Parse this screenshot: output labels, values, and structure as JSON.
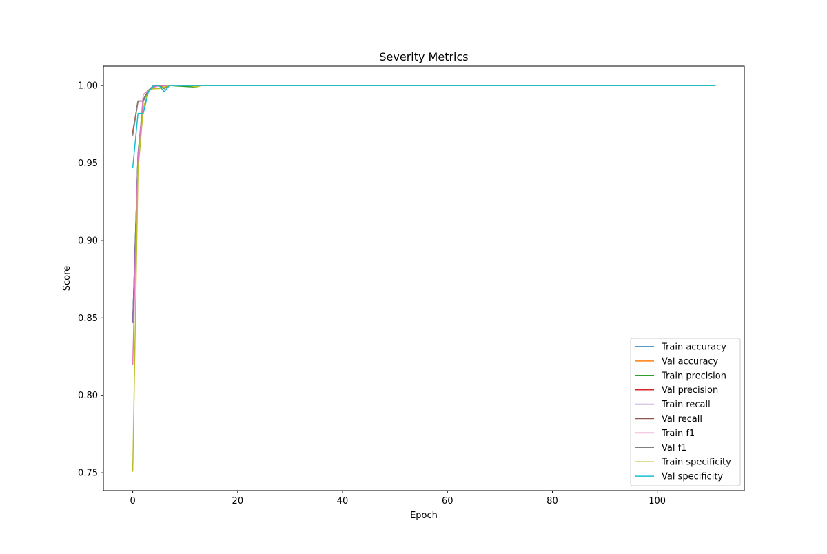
{
  "chart_data": {
    "type": "line",
    "title": "Severity Metrics",
    "xlabel": "Epoch",
    "ylabel": "Score",
    "xlim": [
      -5.6,
      116.6
    ],
    "ylim": [
      0.7385,
      1.0125
    ],
    "xticks": [
      0,
      20,
      40,
      60,
      80,
      100
    ],
    "xtick_labels": [
      "0",
      "20",
      "40",
      "60",
      "80",
      "100"
    ],
    "yticks": [
      0.75,
      0.8,
      0.85,
      0.9,
      0.95,
      1.0
    ],
    "ytick_labels": [
      "0.75",
      "0.80",
      "0.85",
      "0.90",
      "0.95",
      "1.00"
    ],
    "legend_position": "lower-right",
    "grid": false,
    "last_epoch": 111,
    "series": [
      {
        "name": "Train accuracy",
        "color": "#1f77b4",
        "points": [
          [
            0,
            0.847
          ],
          [
            1,
            0.955
          ],
          [
            2,
            0.99
          ],
          [
            3,
            0.997
          ],
          [
            4,
            0.999
          ],
          [
            5,
            1.0
          ],
          [
            6,
            1.0
          ],
          [
            7,
            1.0
          ],
          [
            111,
            1.0
          ]
        ]
      },
      {
        "name": "Val accuracy",
        "color": "#ff7f0e",
        "points": [
          [
            0,
            0.97
          ],
          [
            1,
            0.99
          ],
          [
            2,
            0.99
          ],
          [
            3,
            0.997
          ],
          [
            4,
            1.0
          ],
          [
            5,
            1.0
          ],
          [
            6,
            0.999
          ],
          [
            7,
            1.0
          ],
          [
            111,
            1.0
          ]
        ]
      },
      {
        "name": "Train precision",
        "color": "#2ca02c",
        "points": [
          [
            0,
            0.848
          ],
          [
            1,
            0.956
          ],
          [
            2,
            0.991
          ],
          [
            3,
            0.997
          ],
          [
            4,
            0.999
          ],
          [
            5,
            1.0
          ],
          [
            7,
            1.0
          ],
          [
            12,
            0.999
          ],
          [
            13,
            1.0
          ],
          [
            111,
            1.0
          ]
        ]
      },
      {
        "name": "Val precision",
        "color": "#d62728",
        "points": [
          [
            0,
            0.97
          ],
          [
            1,
            0.99
          ],
          [
            2,
            0.99
          ],
          [
            3,
            0.997
          ],
          [
            4,
            1.0
          ],
          [
            5,
            1.0
          ],
          [
            6,
            0.998
          ],
          [
            7,
            1.0
          ],
          [
            111,
            1.0
          ]
        ]
      },
      {
        "name": "Train recall",
        "color": "#9467bd",
        "points": [
          [
            0,
            0.847
          ],
          [
            1,
            0.955
          ],
          [
            2,
            0.99
          ],
          [
            3,
            0.997
          ],
          [
            4,
            0.999
          ],
          [
            5,
            1.0
          ],
          [
            6,
            1.0
          ],
          [
            7,
            1.0
          ],
          [
            111,
            1.0
          ]
        ]
      },
      {
        "name": "Val recall",
        "color": "#8c564b",
        "points": [
          [
            0,
            0.969
          ],
          [
            1,
            0.99
          ],
          [
            2,
            0.99
          ],
          [
            3,
            0.997
          ],
          [
            4,
            1.0
          ],
          [
            5,
            1.0
          ],
          [
            6,
            0.998
          ],
          [
            7,
            1.0
          ],
          [
            111,
            1.0
          ]
        ]
      },
      {
        "name": "Train f1",
        "color": "#e377c2",
        "points": [
          [
            0,
            0.82
          ],
          [
            1,
            0.953
          ],
          [
            2,
            0.994
          ],
          [
            3,
            0.997
          ],
          [
            4,
            0.999
          ],
          [
            5,
            1.0
          ],
          [
            7,
            1.0
          ],
          [
            111,
            1.0
          ]
        ]
      },
      {
        "name": "Val f1",
        "color": "#7f7f7f",
        "points": [
          [
            0,
            0.968
          ],
          [
            1,
            0.99
          ],
          [
            2,
            0.99
          ],
          [
            3,
            0.997
          ],
          [
            4,
            1.0
          ],
          [
            5,
            1.0
          ],
          [
            6,
            0.998
          ],
          [
            7,
            1.0
          ],
          [
            111,
            1.0
          ]
        ]
      },
      {
        "name": "Train specificity",
        "color": "#bcbd22",
        "points": [
          [
            0,
            0.751
          ],
          [
            1,
            0.945
          ],
          [
            2,
            0.985
          ],
          [
            3,
            0.997
          ],
          [
            4,
            0.998
          ],
          [
            5,
            0.998
          ],
          [
            6,
            0.999
          ],
          [
            7,
            1.0
          ],
          [
            11,
            1.0
          ],
          [
            12,
            0.999
          ],
          [
            13,
            1.0
          ],
          [
            111,
            1.0
          ]
        ]
      },
      {
        "name": "Val specificity",
        "color": "#17becf",
        "points": [
          [
            0,
            0.947
          ],
          [
            1,
            0.982
          ],
          [
            2,
            0.982
          ],
          [
            3,
            0.996
          ],
          [
            4,
            1.0
          ],
          [
            5,
            1.0
          ],
          [
            6,
            0.996
          ],
          [
            7,
            1.0
          ],
          [
            111,
            1.0
          ]
        ]
      }
    ]
  }
}
